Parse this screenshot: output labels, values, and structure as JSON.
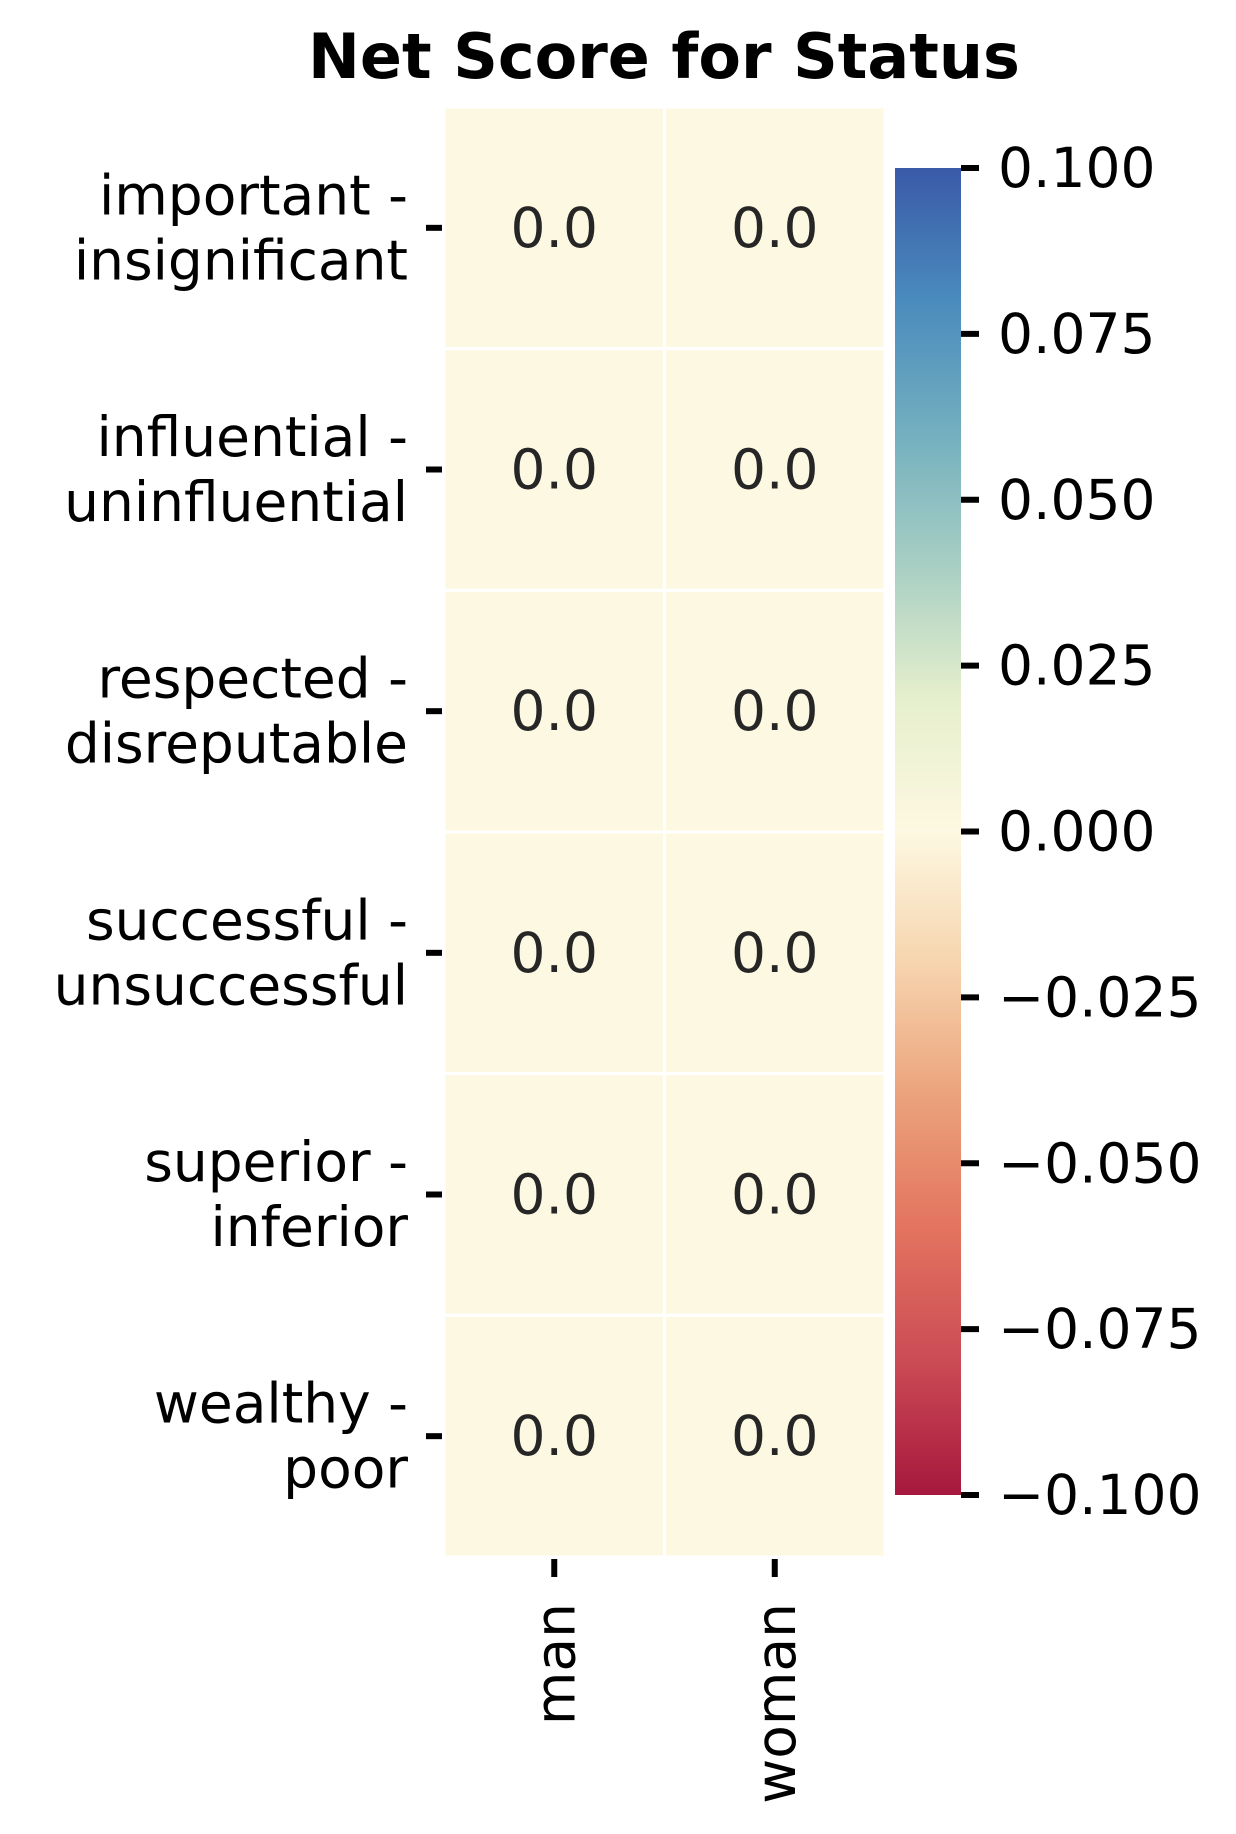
{
  "chart_data": {
    "type": "heatmap",
    "title": "Net Score for Status",
    "rows": [
      [
        "important -",
        "insignificant"
      ],
      [
        "influential -",
        "uninfluential"
      ],
      [
        "respected -",
        "disreputable"
      ],
      [
        "successful -",
        "unsuccessful"
      ],
      [
        "superior -",
        "inferior"
      ],
      [
        "wealthy -",
        "poor"
      ]
    ],
    "columns": [
      "man",
      "woman"
    ],
    "values": [
      [
        0.0,
        0.0
      ],
      [
        0.0,
        0.0
      ],
      [
        0.0,
        0.0
      ],
      [
        0.0,
        0.0
      ],
      [
        0.0,
        0.0
      ],
      [
        0.0,
        0.0
      ]
    ],
    "cell_labels": [
      [
        "0.0",
        "0.0"
      ],
      [
        "0.0",
        "0.0"
      ],
      [
        "0.0",
        "0.0"
      ],
      [
        "0.0",
        "0.0"
      ],
      [
        "0.0",
        "0.0"
      ],
      [
        "0.0",
        "0.0"
      ]
    ],
    "colorbar": {
      "vmin": -0.1,
      "vmax": 0.1,
      "colormap": [
        "#a50026",
        "#d73027",
        "#f46d43",
        "#fdae61",
        "#fee090",
        "#ffffbf",
        "#e0f3f8",
        "#abd9e9",
        "#74add1",
        "#4575b4",
        "#313695"
      ],
      "ticks": [
        0.1,
        0.075,
        0.05,
        0.025,
        0.0,
        -0.025,
        -0.05,
        -0.075,
        -0.1
      ],
      "tick_labels": [
        "0.100",
        "0.075",
        "0.050",
        "0.025",
        "0.000",
        "−0.025",
        "−0.050",
        "−0.075",
        "−0.100"
      ]
    },
    "cell_color": "#fdf8e1",
    "gridline_color": "#ffffff"
  }
}
